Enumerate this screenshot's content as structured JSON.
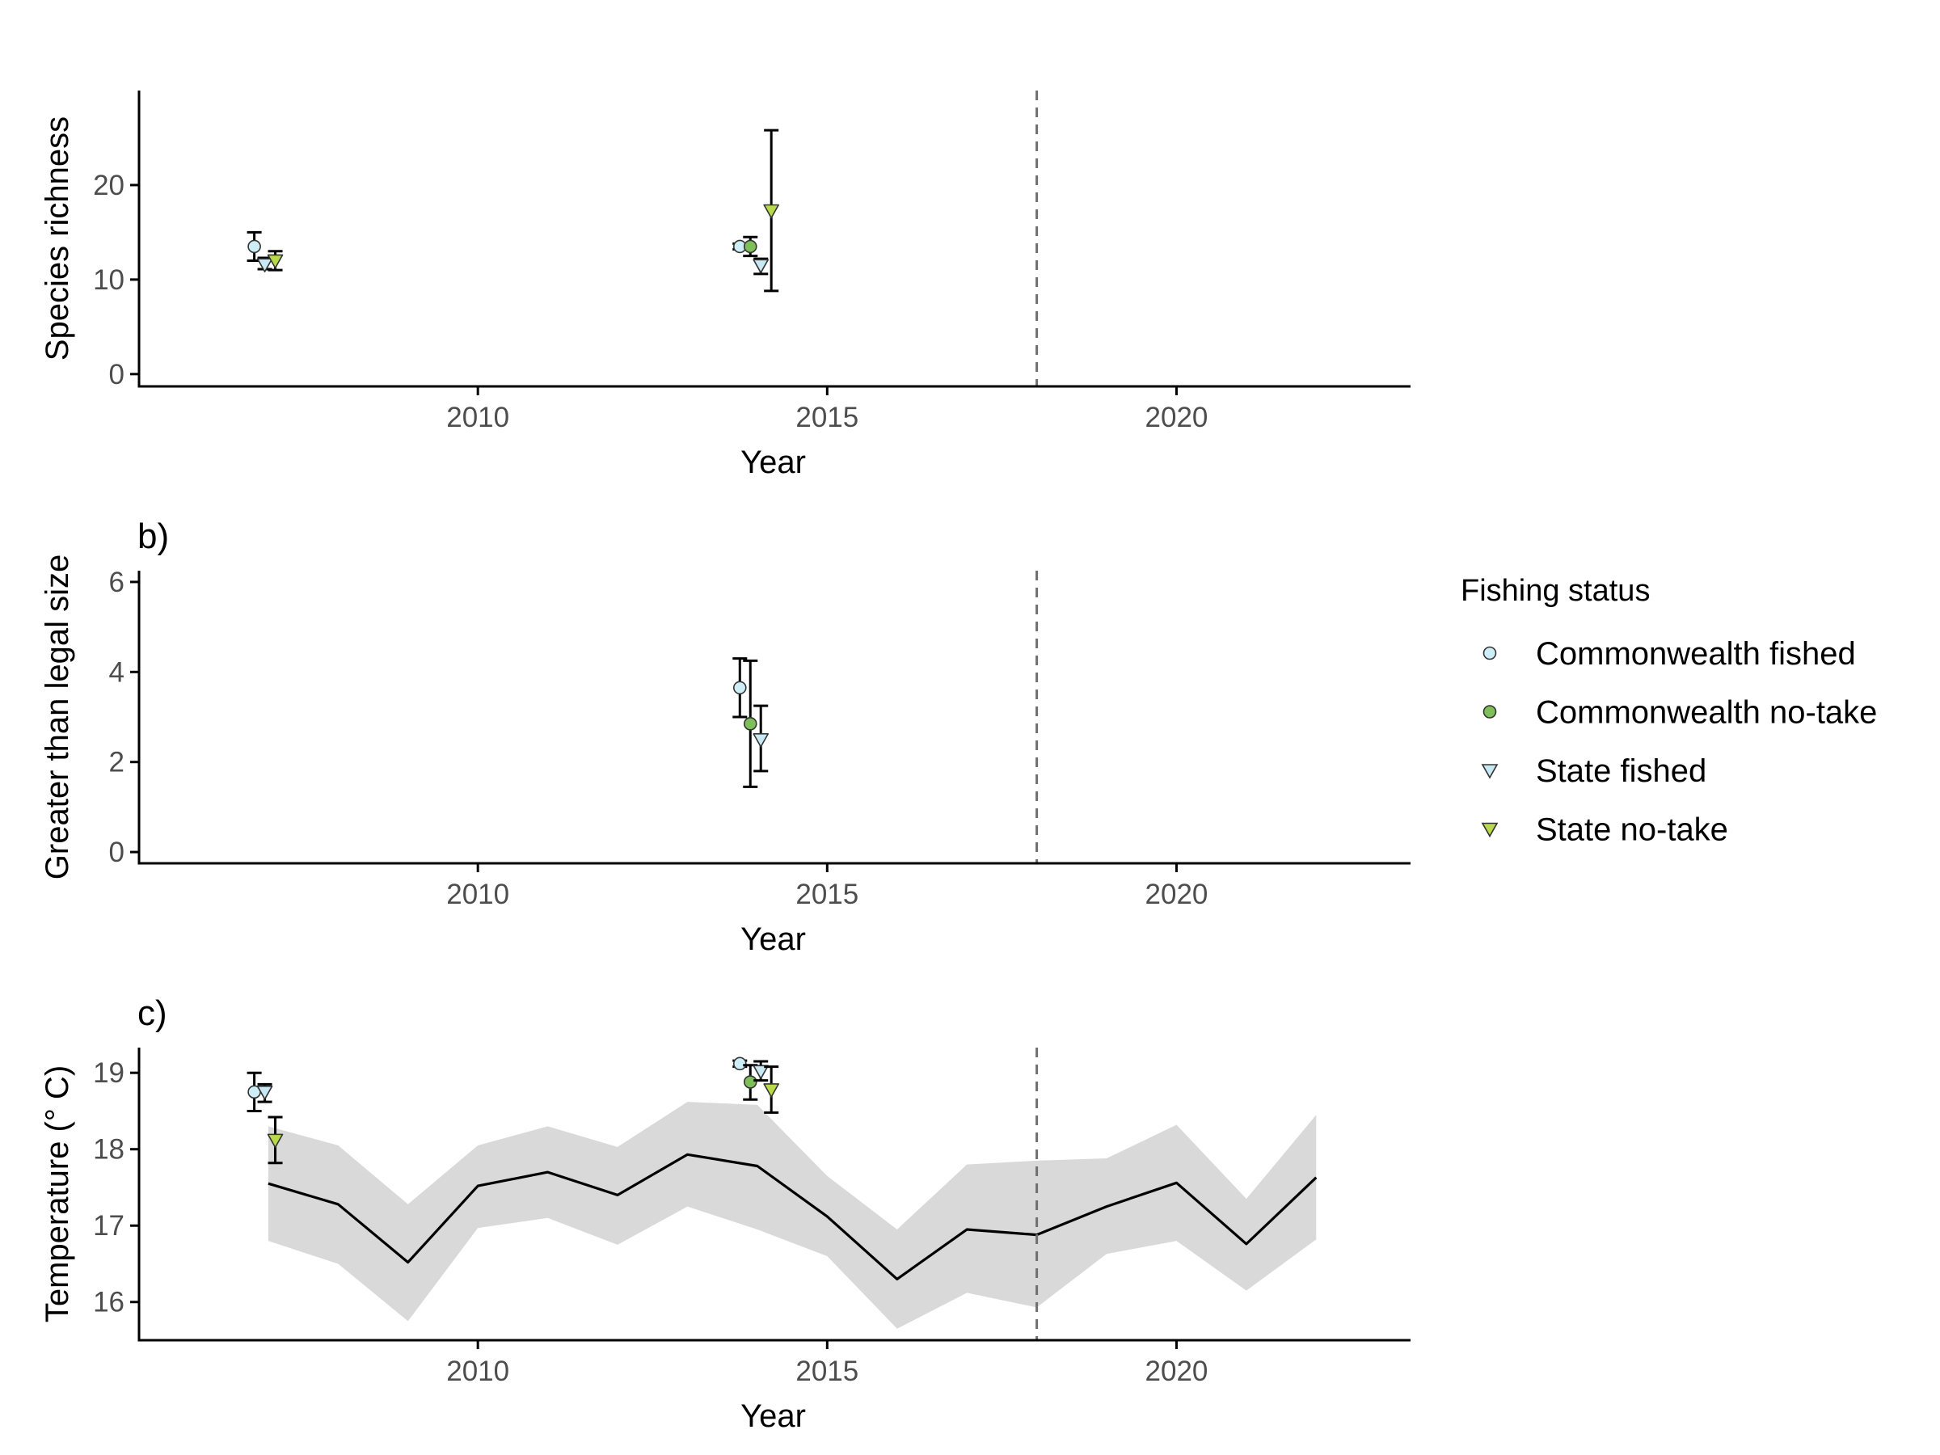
{
  "legend": {
    "title": "Fishing status",
    "position": "right",
    "entries": [
      {
        "label": "Commonwealth fished",
        "shape": "circle",
        "color": "#cdeef7"
      },
      {
        "label": "Commonwealth no-take",
        "shape": "circle",
        "color": "#7fbf5a"
      },
      {
        "label": "State fished",
        "shape": "triangle-down",
        "color": "#c8e9f4"
      },
      {
        "label": "State no-take",
        "shape": "triangle-down",
        "color": "#b7d94a"
      }
    ]
  },
  "chart_data": [
    {
      "type": "scatter",
      "tag": "",
      "xlabel": "Year",
      "ylabel": "Species richness",
      "xlim": [
        2005.15,
        2023.35
      ],
      "ylim": [
        -1.3,
        30.0
      ],
      "xticks": [
        2010,
        2015,
        2020
      ],
      "yticks": [
        0,
        10,
        20
      ],
      "reference_line_x": 2018,
      "series": [
        {
          "name": "Commonwealth fished",
          "points": [
            {
              "x": 2006.8,
              "y": 13.5,
              "lo": 12.0,
              "hi": 15.0
            },
            {
              "x": 2013.75,
              "y": 13.5,
              "lo": 13.2,
              "hi": 13.8
            }
          ]
        },
        {
          "name": "Commonwealth no-take",
          "points": [
            {
              "x": 2013.9,
              "y": 13.5,
              "lo": 12.5,
              "hi": 14.5
            }
          ]
        },
        {
          "name": "State fished",
          "points": [
            {
              "x": 2006.95,
              "y": 11.6,
              "lo": 11.1,
              "hi": 12.3
            },
            {
              "x": 2014.05,
              "y": 11.5,
              "lo": 10.6,
              "hi": 12.2
            }
          ]
        },
        {
          "name": "State no-take",
          "points": [
            {
              "x": 2007.1,
              "y": 12.0,
              "lo": 11.0,
              "hi": 13.0
            },
            {
              "x": 2014.2,
              "y": 17.3,
              "lo": 8.8,
              "hi": 25.8
            }
          ]
        }
      ]
    },
    {
      "type": "scatter",
      "tag": "b)",
      "xlabel": "Year",
      "ylabel": "Greater than legal size",
      "xlim": [
        2005.15,
        2023.35
      ],
      "ylim": [
        -0.25,
        6.25
      ],
      "xticks": [
        2010,
        2015,
        2020
      ],
      "yticks": [
        0,
        2,
        4,
        6
      ],
      "reference_line_x": 2018,
      "series": [
        {
          "name": "Commonwealth fished",
          "points": [
            {
              "x": 2013.75,
              "y": 3.65,
              "lo": 3.0,
              "hi": 4.3
            }
          ]
        },
        {
          "name": "Commonwealth no-take",
          "points": [
            {
              "x": 2013.9,
              "y": 2.85,
              "lo": 1.45,
              "hi": 4.25
            }
          ]
        },
        {
          "name": "State fished",
          "points": [
            {
              "x": 2014.05,
              "y": 2.5,
              "lo": 1.8,
              "hi": 3.25
            }
          ]
        }
      ]
    },
    {
      "type": "line",
      "tag": "c)",
      "xlabel": "Year",
      "ylabel": "Temperature (° C)",
      "xlim": [
        2005.15,
        2023.35
      ],
      "ylim": [
        15.5,
        19.33
      ],
      "xticks": [
        2010,
        2015,
        2020
      ],
      "yticks": [
        16,
        17,
        18,
        19
      ],
      "reference_line_x": 2018,
      "band": {
        "x": [
          2007,
          2008,
          2009,
          2010,
          2011,
          2012,
          2013,
          2014,
          2015,
          2016,
          2017,
          2018,
          2019,
          2020,
          2021,
          2022
        ],
        "mean": [
          17.55,
          17.28,
          16.52,
          17.52,
          17.7,
          17.4,
          17.93,
          17.78,
          17.12,
          16.3,
          16.95,
          16.88,
          17.25,
          17.56,
          16.76,
          17.63
        ],
        "lower": [
          16.8,
          16.5,
          15.75,
          16.97,
          17.1,
          16.75,
          17.25,
          16.95,
          16.6,
          15.65,
          16.12,
          15.93,
          16.63,
          16.8,
          16.15,
          16.82
        ],
        "upper": [
          18.3,
          18.05,
          17.28,
          18.05,
          18.3,
          18.03,
          18.62,
          18.58,
          17.65,
          16.95,
          17.8,
          17.85,
          17.88,
          18.32,
          17.35,
          18.45
        ]
      },
      "series": [
        {
          "name": "Commonwealth fished",
          "points": [
            {
              "x": 2006.8,
              "y": 18.75,
              "lo": 18.5,
              "hi": 19.0
            },
            {
              "x": 2013.75,
              "y": 19.12,
              "lo": 19.08,
              "hi": 19.16
            }
          ]
        },
        {
          "name": "Commonwealth no-take",
          "points": [
            {
              "x": 2013.9,
              "y": 18.88,
              "lo": 18.65,
              "hi": 19.1
            }
          ]
        },
        {
          "name": "State fished",
          "points": [
            {
              "x": 2006.95,
              "y": 18.75,
              "lo": 18.62,
              "hi": 18.85
            },
            {
              "x": 2014.05,
              "y": 19.02,
              "lo": 18.9,
              "hi": 19.15
            }
          ]
        },
        {
          "name": "State no-take",
          "points": [
            {
              "x": 2007.1,
              "y": 18.12,
              "lo": 17.82,
              "hi": 18.42
            },
            {
              "x": 2014.2,
              "y": 18.78,
              "lo": 18.48,
              "hi": 19.08
            }
          ]
        }
      ]
    }
  ]
}
